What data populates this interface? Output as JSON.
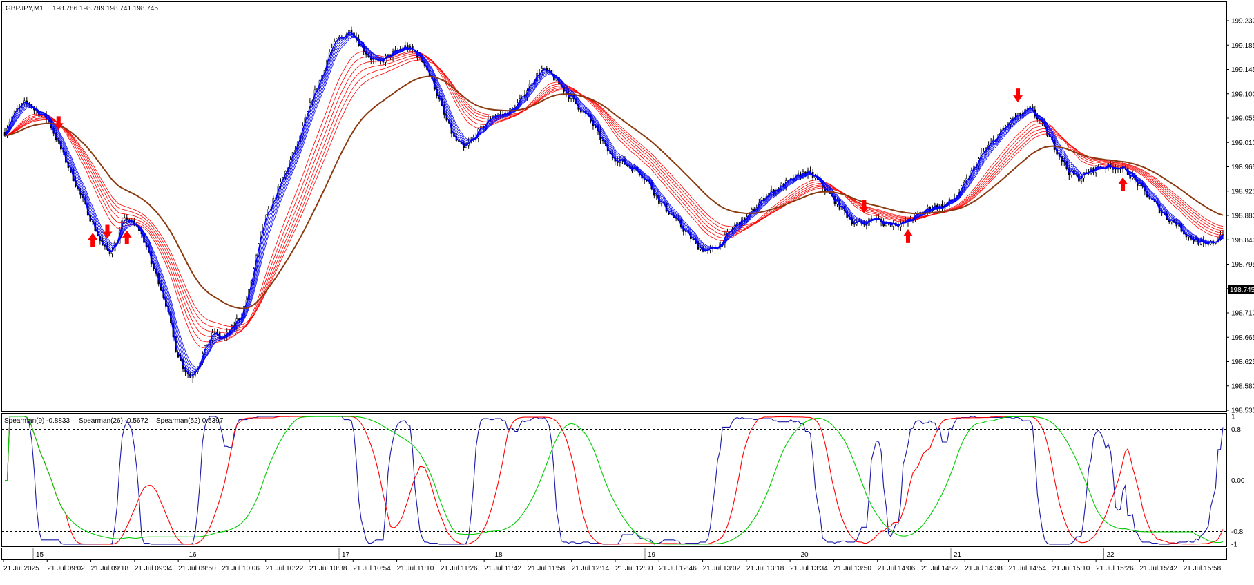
{
  "colors": {
    "background": "#ffffff",
    "frame": "#000000",
    "candle": "#000000",
    "fast_ema": "#0000ff",
    "slow_ema": "#ff0000",
    "long_ema": "#8b3a0f",
    "buy_arrow": "#ff0000",
    "sell_arrow": "#ff0000",
    "spearman_fast": "#1a1aa6",
    "spearman_mid": "#ff0000",
    "spearman_slow": "#00cc00",
    "price_tag_bg": "#000000",
    "price_tag_fg": "#ffffff"
  },
  "header": {
    "symbol": "GBPJPY,M1",
    "ohlc": "198.786 198.789 198.741 198.745"
  },
  "indicator_header": {
    "label_1": "Spearman(9) -0.8833",
    "label_2": "Spearman(26) -0.5672",
    "label_3": "Spearman(52) 0.5397"
  },
  "current_price_tag": "198.745",
  "chart_data": [
    {
      "type": "candlestick",
      "title": "GBPJPY,M1",
      "ylim": [
        198.535,
        199.23
      ],
      "y_ticks": [
        "199.230",
        "199.185",
        "199.145",
        "199.100",
        "199.055",
        "199.010",
        "198.965",
        "198.925",
        "198.880",
        "198.840",
        "198.795",
        "198.750",
        "198.710",
        "198.665",
        "198.625",
        "198.580",
        "198.535"
      ],
      "x_ticks": [
        "21 Jul 2025",
        "21 Jul 09:02",
        "21 Jul 09:18",
        "21 Jul 09:34",
        "21 Jul 09:50",
        "21 Jul 10:06",
        "21 Jul 10:22",
        "21 Jul 10:38",
        "21 Jul 10:54",
        "21 Jul 11:10",
        "21 Jul 11:26",
        "21 Jul 11:42",
        "21 Jul 11:58",
        "21 Jul 12:14",
        "21 Jul 12:30",
        "21 Jul 12:46",
        "21 Jul 13:02",
        "21 Jul 13:18",
        "21 Jul 13:34",
        "21 Jul 13:50",
        "21 Jul 14:06",
        "21 Jul 14:22",
        "21 Jul 14:38",
        "21 Jul 14:54",
        "21 Jul 15:10",
        "21 Jul 15:26",
        "21 Jul 15:42",
        "21 Jul 15:58"
      ],
      "period_labels": [
        "15",
        "16",
        "17",
        "18",
        "19",
        "20",
        "21",
        "22"
      ],
      "price_path_x": [
        0,
        2,
        5,
        8,
        10,
        12,
        15,
        18,
        20,
        22,
        24,
        26,
        28,
        30,
        32,
        35,
        38,
        40,
        43,
        46,
        48,
        50,
        52,
        55,
        58,
        60,
        63,
        66,
        68,
        70,
        73,
        76,
        80,
        83,
        86,
        88,
        90,
        92,
        94,
        95,
        97,
        100,
        103,
        106,
        110,
        113,
        116,
        120,
        123,
        126,
        130,
        133,
        136,
        139,
        142,
        146,
        150,
        153,
        156,
        160,
        164,
        168,
        172,
        176,
        180,
        184,
        188,
        192,
        196,
        200,
        204,
        208,
        212,
        216,
        220,
        224,
        228,
        232,
        236,
        240,
        244,
        248,
        252,
        256,
        260,
        264,
        268,
        272,
        276,
        280,
        284,
        288,
        292,
        296,
        300,
        304,
        308,
        312,
        316,
        320,
        324,
        328,
        332,
        336,
        340,
        344,
        348,
        352,
        356,
        360,
        364,
        368,
        372,
        376,
        380,
        384,
        388,
        392,
        396,
        400,
        404,
        408,
        412,
        416,
        420,
        424,
        428,
        432,
        436,
        440,
        444,
        448,
        452,
        456,
        460,
        464,
        468,
        472,
        476,
        480,
        484,
        488,
        492,
        496,
        500
      ],
      "price_path_y": [
        199.02,
        199.04,
        199.06,
        199.07,
        199.07,
        199.06,
        199.05,
        199.04,
        199.02,
        199.0,
        198.98,
        198.96,
        198.94,
        198.92,
        198.9,
        198.87,
        198.84,
        198.82,
        198.81,
        198.83,
        198.86,
        198.87,
        198.86,
        198.85,
        198.82,
        198.79,
        198.76,
        198.72,
        198.68,
        198.64,
        198.61,
        198.59,
        198.62,
        198.65,
        198.67,
        198.66,
        198.66,
        198.67,
        198.68,
        198.69,
        198.7,
        198.74,
        198.8,
        198.86,
        198.9,
        198.93,
        198.96,
        199.0,
        199.04,
        199.08,
        199.12,
        199.16,
        199.18,
        199.19,
        199.2,
        199.17,
        199.15,
        199.14,
        199.15,
        199.16,
        199.17,
        199.16,
        199.14,
        199.1,
        199.05,
        199.01,
        198.99,
        199.01,
        199.03,
        199.05,
        199.05,
        199.06,
        199.08,
        199.11,
        199.13,
        199.12,
        199.1,
        199.08,
        199.06,
        199.04,
        199.01,
        198.98,
        198.97,
        198.96,
        198.95,
        198.93,
        198.9,
        198.88,
        198.86,
        198.84,
        198.82,
        198.81,
        198.82,
        198.84,
        198.86,
        198.87,
        198.89,
        198.91,
        198.92,
        198.93,
        198.94,
        198.95,
        198.94,
        198.92,
        198.9,
        198.88,
        198.86,
        198.86,
        198.87,
        198.86,
        198.86,
        198.86,
        198.87,
        198.88,
        198.89,
        198.89,
        198.9,
        198.92,
        198.95,
        198.98,
        199.0,
        199.02,
        199.04,
        199.05,
        199.06,
        199.04,
        199.01,
        198.98,
        198.95,
        198.94,
        198.95,
        198.96,
        198.96,
        198.96,
        198.95,
        198.93,
        198.91,
        198.89,
        198.87,
        198.86,
        198.84,
        198.83,
        198.82,
        198.83,
        198.85
      ],
      "indicators": [
        "fast EMA ribbon",
        "slow EMA ribbon",
        "long EMA"
      ],
      "signals": [
        "buy",
        "buy",
        "buy",
        "buy",
        "buy",
        "sell",
        "sell",
        "sell",
        "sell"
      ]
    },
    {
      "type": "line",
      "title": "Spearman(9) -0.8833 Spearman(26) -0.5672 Spearman(52) 0.5397",
      "ylim": [
        -1,
        1
      ],
      "y_ticks": [
        "1",
        "0.8",
        "0.00",
        "-0.8",
        "-1"
      ],
      "level_lines": [
        0.8,
        -0.8
      ],
      "series": [
        {
          "name": "Spearman(9)",
          "color": "#1a1aa6"
        },
        {
          "name": "Spearman(26)",
          "color": "#ff0000"
        },
        {
          "name": "Spearman(52)",
          "color": "#00cc00"
        }
      ]
    }
  ]
}
